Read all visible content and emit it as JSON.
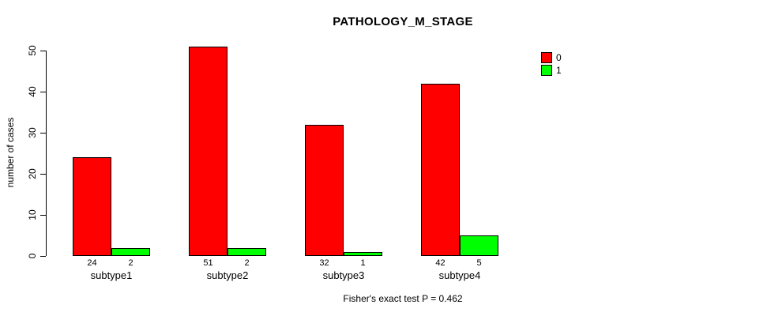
{
  "chart": {
    "title": "PATHOLOGY_M_STAGE",
    "ylabel": "number of cases",
    "footer": "Fisher's exact test P = 0.462"
  },
  "chart_data": {
    "type": "bar",
    "title": "PATHOLOGY_M_STAGE",
    "xlabel": "",
    "ylabel": "number of cases",
    "categories": [
      "subtype1",
      "subtype2",
      "subtype3",
      "subtype4"
    ],
    "series": [
      {
        "name": "0",
        "color": "#ff0000",
        "values": [
          24,
          51,
          32,
          42
        ]
      },
      {
        "name": "1",
        "color": "#00ff00",
        "values": [
          2,
          2,
          1,
          5
        ]
      }
    ],
    "yticks": [
      0,
      10,
      20,
      30,
      40,
      50
    ],
    "ylim": [
      0,
      50
    ],
    "bar_value_labels": true,
    "grid": false,
    "legend_position": "top-right",
    "annotation": "Fisher's exact test P = 0.462",
    "axis_color": "#000000",
    "bar_border_color": "#000000"
  }
}
